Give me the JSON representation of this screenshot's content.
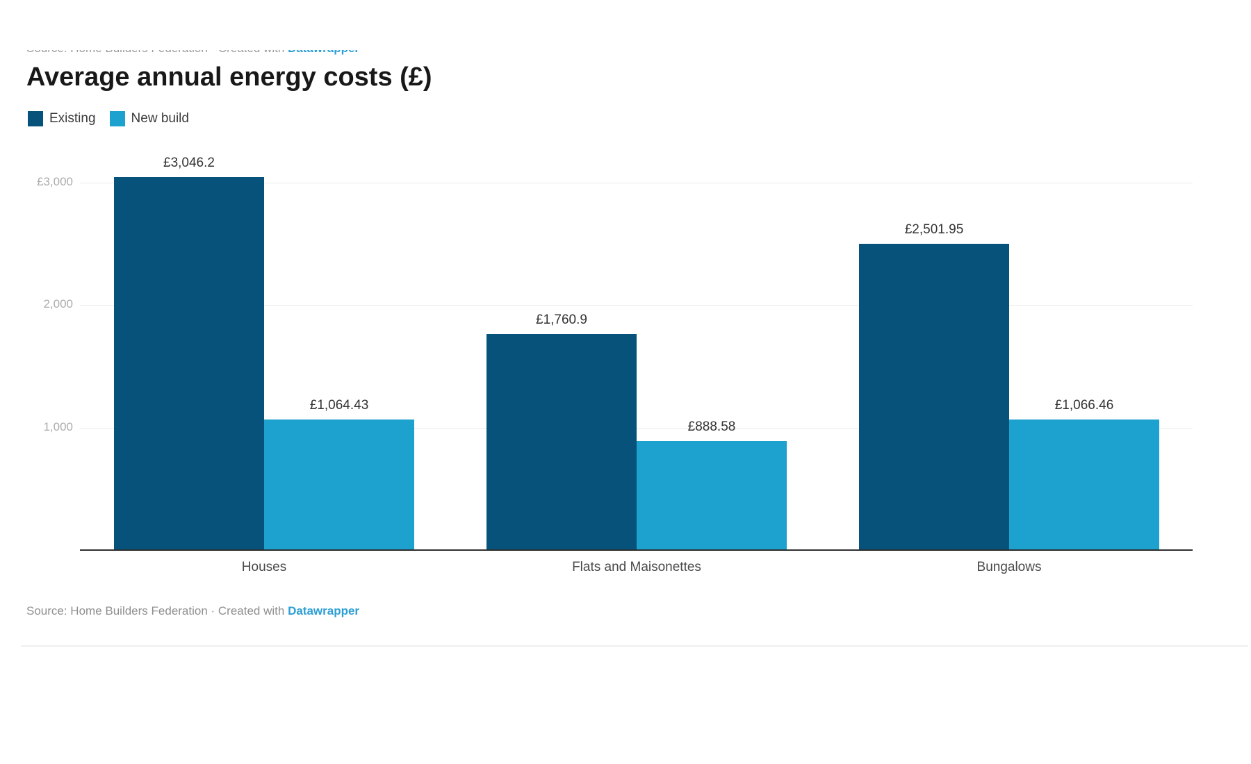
{
  "header": {
    "title": "Average annual energy costs (£)"
  },
  "source_line": {
    "text": "Source: Home Builders Federation · Created with ",
    "link_label": "Datawrapper"
  },
  "legend": [
    {
      "label": "Existing",
      "color": "#07527b"
    },
    {
      "label": "New build",
      "color": "#1da1cf"
    }
  ],
  "colors": {
    "existing": "#07527b",
    "new_build": "#1da1cf",
    "gridline": "#ebebeb",
    "axis_line": "#2e2e2e",
    "link_blue": "#2d9fd6"
  },
  "chart_data": {
    "type": "bar",
    "title": "Average annual energy costs (£)",
    "xlabel": "",
    "ylabel": "",
    "categories": [
      "Houses",
      "Flats and Maisonettes",
      "Bungalows"
    ],
    "series": [
      {
        "name": "Existing",
        "color": "#07527b",
        "values": [
          3046.2,
          1760.9,
          2501.95
        ],
        "labels": [
          "£3,046.2",
          "£1,760.9",
          "£2,501.95"
        ]
      },
      {
        "name": "New build",
        "color": "#1da1cf",
        "values": [
          1064.43,
          888.58,
          1066.46
        ],
        "labels": [
          "£1,064.43",
          "£888.58",
          "£1,066.46"
        ]
      }
    ],
    "y_axis": {
      "ticks": [
        {
          "value": 1000,
          "label": "1,000"
        },
        {
          "value": 2000,
          "label": "2,000"
        },
        {
          "value": 3000,
          "label": "£3,000"
        }
      ],
      "range": [
        0,
        3200
      ]
    },
    "grid": true,
    "legend_position": "top-left",
    "value_labels_shown": true,
    "currency": "£"
  }
}
